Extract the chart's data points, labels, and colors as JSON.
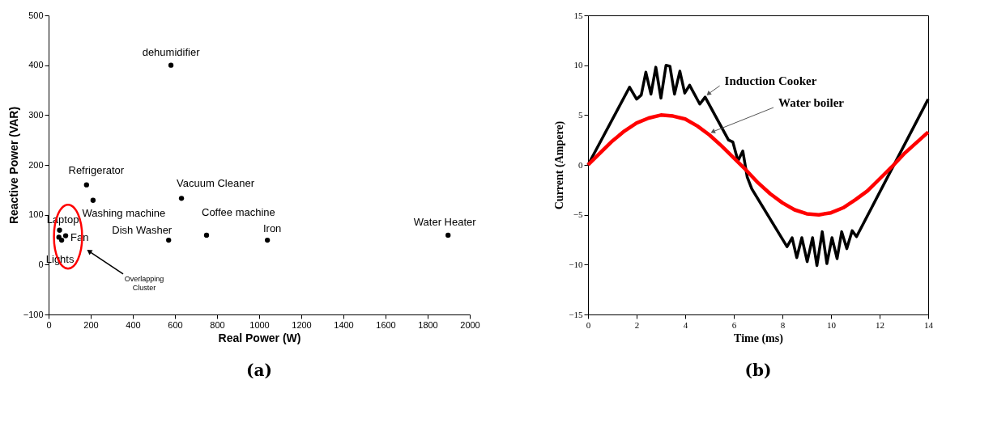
{
  "chart_data": [
    {
      "type": "scatter",
      "xlabel": "Real Power (W)",
      "ylabel": "Reactive Power (VAR)",
      "marker": "circle",
      "xlim": [
        0,
        2000
      ],
      "xticks": [
        0,
        200,
        400,
        600,
        800,
        1000,
        1200,
        1400,
        1600,
        1800,
        2000
      ],
      "ylim": [
        -100,
        500
      ],
      "yticks": [
        -100,
        0,
        100,
        200,
        300,
        400,
        500
      ],
      "series": [
        {
          "color": "#000000",
          "x": [
            52,
            49,
            62,
            81,
            180,
            211,
            581,
            631,
            570,
            750,
            1039,
            1897
          ],
          "values": [
            69,
            55,
            49,
            58,
            160,
            129,
            400,
            133,
            49,
            59,
            49,
            59
          ]
        }
      ],
      "annotations": [
        {
          "text": "dehumidifier",
          "x": 581,
          "y": 400
        },
        {
          "text": "Refrigerator",
          "x": 180,
          "y": 160
        },
        {
          "text": "Washing machine",
          "x": 211,
          "y": 129
        },
        {
          "text": "Vacuum Cleaner",
          "x": 631,
          "y": 133
        },
        {
          "text": "Dish Washer",
          "x": 570,
          "y": 49
        },
        {
          "text": "Coffee machine",
          "x": 750,
          "y": 59
        },
        {
          "text": "Iron",
          "x": 1039,
          "y": 49
        },
        {
          "text": "Water Heater",
          "x": 1897,
          "y": 59
        },
        {
          "text": "Laptop",
          "x": 52,
          "y": 69
        },
        {
          "text": "Fan",
          "x": 81,
          "y": 58
        },
        {
          "text": "Lights",
          "x": 62,
          "y": 49
        },
        "Overlapping Cluster",
        "(a)"
      ]
    },
    {
      "type": "line",
      "xlabel": "Time (ms)",
      "ylabel": "Current (Ampere)",
      "xlim": [
        0,
        14
      ],
      "xticks": [
        0,
        2,
        4,
        6,
        8,
        10,
        12,
        14
      ],
      "ylim": [
        -15,
        15
      ],
      "yticks": [
        -15,
        -10,
        -5,
        0,
        5,
        10,
        15
      ],
      "series": [
        {
          "name": "Induction Cooker",
          "color": "#000000",
          "x": [
            0,
            1.71,
            2.0,
            2.19,
            2.38,
            2.59,
            2.79,
            3.0,
            3.21,
            3.37,
            3.56,
            3.78,
            3.98,
            4.18,
            4.6,
            4.82,
            5.78,
            5.96,
            6.17,
            6.37,
            6.55,
            6.74,
            8.19,
            8.4,
            8.59,
            8.8,
            9.02,
            9.24,
            9.42,
            9.64,
            9.83,
            10.04,
            10.25,
            10.44,
            10.65,
            10.87,
            11.05,
            14
          ],
          "values": [
            0,
            7.8,
            6.6,
            7.0,
            9.3,
            7.1,
            9.8,
            6.7,
            10.0,
            9.9,
            7.1,
            9.4,
            7.2,
            8.0,
            6.1,
            6.8,
            2.5,
            2.3,
            0.4,
            1.4,
            -1.2,
            -2.4,
            -8.2,
            -7.3,
            -9.3,
            -7.3,
            -9.7,
            -7.3,
            -10.1,
            -6.7,
            -9.9,
            -7.3,
            -9.4,
            -6.7,
            -8.4,
            -6.6,
            -7.2,
            6.6
          ]
        },
        {
          "name": "Water boiler",
          "color": "#ff0000",
          "x": [
            0,
            0.5,
            1,
            1.5,
            2,
            2.5,
            3,
            3.5,
            4,
            4.5,
            5,
            5.5,
            6,
            6.5,
            7,
            7.5,
            8,
            8.5,
            9,
            9.5,
            10,
            10.5,
            11,
            11.5,
            12,
            12.5,
            13,
            13.5,
            14
          ],
          "values": [
            0,
            1.2,
            2.4,
            3.4,
            4.2,
            4.7,
            5.0,
            4.9,
            4.6,
            3.9,
            3.0,
            1.9,
            0.7,
            -0.5,
            -1.8,
            -2.9,
            -3.8,
            -4.5,
            -4.9,
            -5.0,
            -4.8,
            -4.3,
            -3.5,
            -2.6,
            -1.4,
            -0.2,
            1.1,
            2.2,
            3.3
          ]
        }
      ],
      "annotations": [
        "(b)"
      ]
    }
  ]
}
